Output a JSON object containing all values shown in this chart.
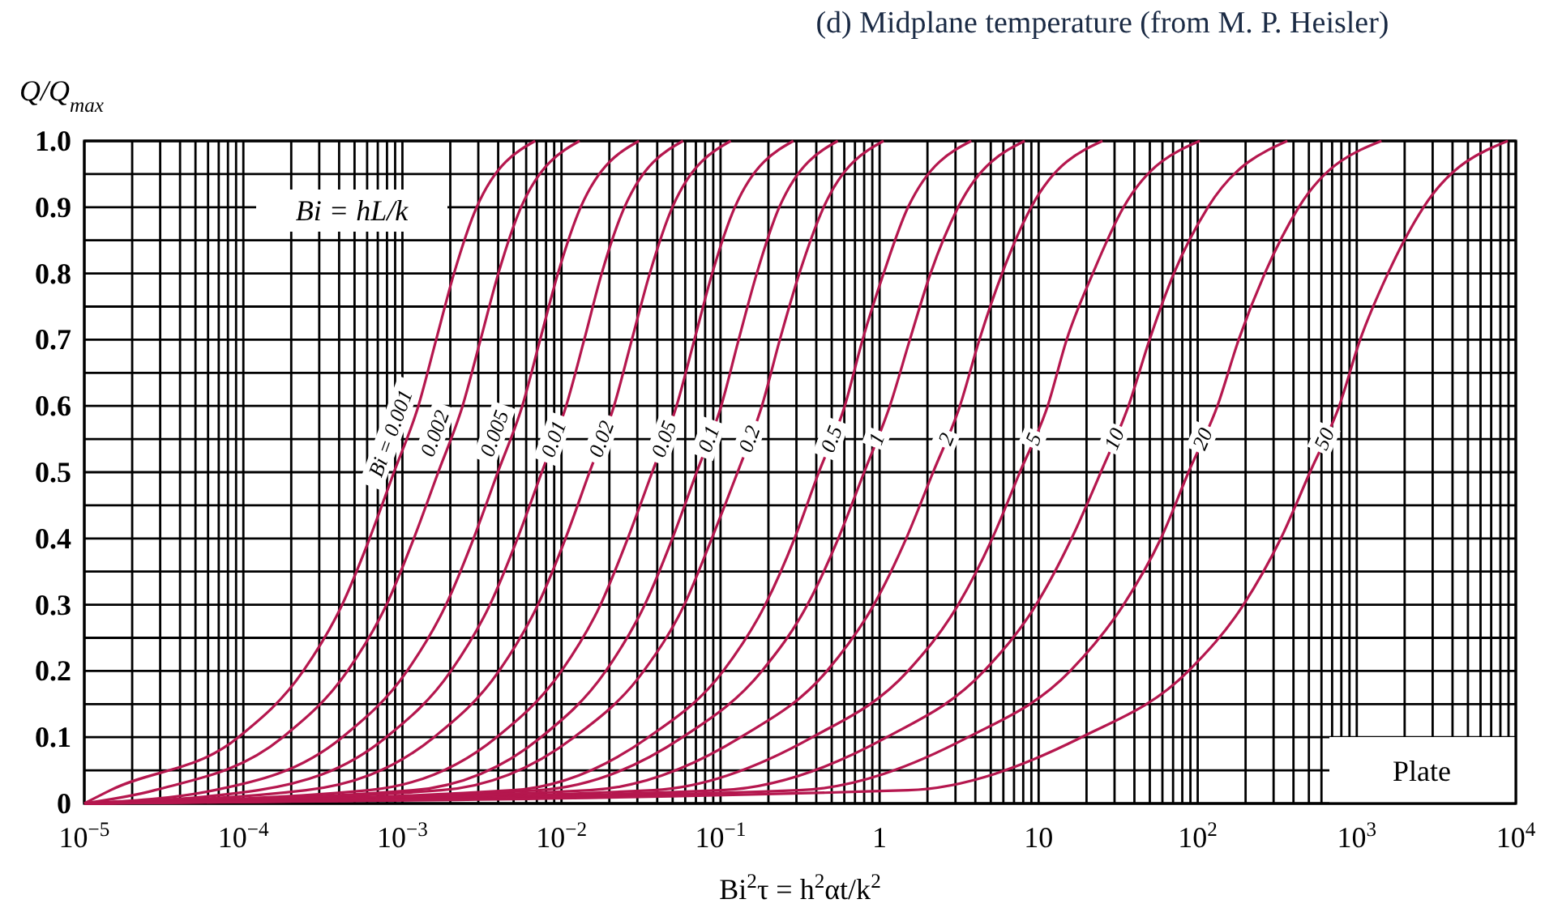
{
  "chart_data": {
    "type": "line",
    "title": "(d) Midplane temperature (from M. P. Heisler)",
    "xlabel": "Bi$^{2}$τ = h$^{2}$αt/k$^{2}$",
    "ylabel": "Q/Q$_{max}$",
    "log": "x",
    "grid": true,
    "legend": false,
    "marker": "none",
    "line_style": "solid",
    "xlim": [
      1e-05,
      10000
    ],
    "ylim": [
      0,
      1
    ],
    "xticks": [
      {
        "value": 1e-05,
        "label": "10$^{−5}$"
      },
      {
        "value": 2e-05,
        "label": null
      },
      {
        "value": 3e-05,
        "label": null
      },
      {
        "value": 4e-05,
        "label": null
      },
      {
        "value": 5e-05,
        "label": null
      },
      {
        "value": 6e-05,
        "label": null
      },
      {
        "value": 7e-05,
        "label": null
      },
      {
        "value": 8e-05,
        "label": null
      },
      {
        "value": 9e-05,
        "label": null
      },
      {
        "value": 0.0001,
        "label": "10$^{−4}$"
      },
      {
        "value": 0.0002,
        "label": null
      },
      {
        "value": 0.0003,
        "label": null
      },
      {
        "value": 0.0004,
        "label": null
      },
      {
        "value": 0.0005,
        "label": null
      },
      {
        "value": 0.0006,
        "label": null
      },
      {
        "value": 0.0007,
        "label": null
      },
      {
        "value": 0.0008,
        "label": null
      },
      {
        "value": 0.0009,
        "label": null
      },
      {
        "value": 0.001,
        "label": "10$^{−3}$"
      },
      {
        "value": 0.002,
        "label": null
      },
      {
        "value": 0.003,
        "label": null
      },
      {
        "value": 0.004,
        "label": null
      },
      {
        "value": 0.005,
        "label": null
      },
      {
        "value": 0.006,
        "label": null
      },
      {
        "value": 0.007,
        "label": null
      },
      {
        "value": 0.008,
        "label": null
      },
      {
        "value": 0.009,
        "label": null
      },
      {
        "value": 0.01,
        "label": "10$^{−2}$"
      },
      {
        "value": 0.02,
        "label": null
      },
      {
        "value": 0.03,
        "label": null
      },
      {
        "value": 0.04,
        "label": null
      },
      {
        "value": 0.05,
        "label": null
      },
      {
        "value": 0.06,
        "label": null
      },
      {
        "value": 0.07,
        "label": null
      },
      {
        "value": 0.08,
        "label": null
      },
      {
        "value": 0.09,
        "label": null
      },
      {
        "value": 0.1,
        "label": "10$^{−1}$"
      },
      {
        "value": 0.2,
        "label": null
      },
      {
        "value": 0.3,
        "label": null
      },
      {
        "value": 0.4,
        "label": null
      },
      {
        "value": 0.5,
        "label": null
      },
      {
        "value": 0.6,
        "label": null
      },
      {
        "value": 0.7,
        "label": null
      },
      {
        "value": 0.8,
        "label": null
      },
      {
        "value": 0.9,
        "label": null
      },
      1,
      {
        "value": 2,
        "label": null
      },
      {
        "value": 3,
        "label": null
      },
      {
        "value": 4,
        "label": null
      },
      {
        "value": 5,
        "label": null
      },
      {
        "value": 6,
        "label": null
      },
      {
        "value": 7,
        "label": null
      },
      {
        "value": 8,
        "label": null
      },
      {
        "value": 9,
        "label": null
      },
      10,
      {
        "value": 20,
        "label": null
      },
      {
        "value": 30,
        "label": null
      },
      {
        "value": 40,
        "label": null
      },
      {
        "value": 50,
        "label": null
      },
      {
        "value": 60,
        "label": null
      },
      {
        "value": 70,
        "label": null
      },
      {
        "value": 80,
        "label": null
      },
      {
        "value": 90,
        "label": null
      },
      {
        "value": 100,
        "label": "10$^{2}$"
      },
      {
        "value": 200,
        "label": null
      },
      {
        "value": 300,
        "label": null
      },
      {
        "value": 400,
        "label": null
      },
      {
        "value": 500,
        "label": null
      },
      {
        "value": 600,
        "label": null
      },
      {
        "value": 700,
        "label": null
      },
      {
        "value": 800,
        "label": null
      },
      {
        "value": 900,
        "label": null
      },
      {
        "value": 1000,
        "label": "10$^{3}$"
      },
      {
        "value": 2000,
        "label": null
      },
      {
        "value": 3000,
        "label": null
      },
      {
        "value": 4000,
        "label": null
      },
      {
        "value": 5000,
        "label": null
      },
      {
        "value": 6000,
        "label": null
      },
      {
        "value": 7000,
        "label": null
      },
      {
        "value": 8000,
        "label": null
      },
      {
        "value": 9000,
        "label": null
      },
      {
        "value": 10000,
        "label": "10$^{4}$"
      }
    ],
    "yticks": [
      0,
      {
        "value": 0.05,
        "label": null
      },
      0.1,
      {
        "value": 0.15,
        "label": null
      },
      0.2,
      {
        "value": 0.25,
        "label": null
      },
      0.3,
      {
        "value": 0.35,
        "label": null
      },
      0.4,
      {
        "value": 0.45,
        "label": null
      },
      0.5,
      {
        "value": 0.55,
        "label": null
      },
      0.6,
      {
        "value": 0.65,
        "label": null
      },
      0.7,
      {
        "value": 0.75,
        "label": null
      },
      0.8,
      {
        "value": 0.85,
        "label": null
      },
      0.9,
      {
        "value": 0.95,
        "label": null
      },
      {
        "value": 1,
        "label": "1.0"
      }
    ],
    "annotations": [
      "Bi = hL/k",
      "Plate"
    ],
    "series": [
      {
        "name": "Bi = 0.001",
        "color": "#b5174e",
        "x": [
          1e-05,
          1.46e-05,
          9.3e-05,
          0.000238,
          0.000418,
          0.000622,
          0.000885,
          0.00126,
          0.00163,
          0.00211,
          0.00293,
          0.00683
        ],
        "values": [
          0,
          0.02,
          0.1,
          0.2,
          0.3,
          0.4,
          0.5,
          0.6,
          0.7,
          0.8,
          0.9,
          1
        ]
      },
      {
        "name": "0.002",
        "color": "#b5174e",
        "x": [
          1e-05,
          2.77e-05,
          0.000177,
          0.000452,
          0.000794,
          0.00118,
          0.00168,
          0.00239,
          0.0031,
          0.00401,
          0.00557,
          0.013
        ],
        "values": [
          0,
          0.02,
          0.1,
          0.2,
          0.3,
          0.4,
          0.5,
          0.6,
          0.7,
          0.8,
          0.9,
          1
        ]
      },
      {
        "name": "0.005",
        "color": "#b5174e",
        "x": [
          1e-05,
          6.57e-05,
          0.000419,
          0.00107,
          0.00188,
          0.0028,
          0.00398,
          0.00567,
          0.00734,
          0.0095,
          0.0132,
          0.0307
        ],
        "values": [
          0,
          0.02,
          0.1,
          0.2,
          0.3,
          0.4,
          0.5,
          0.6,
          0.7,
          0.8,
          0.9,
          1
        ]
      },
      {
        "name": "0.01",
        "color": "#b5174e",
        "x": [
          1e-05,
          0.000124,
          0.000791,
          0.00202,
          0.00355,
          0.00529,
          0.00752,
          0.0107,
          0.0139,
          0.0179,
          0.0249,
          0.0581
        ],
        "values": [
          0,
          0.02,
          0.1,
          0.2,
          0.3,
          0.4,
          0.5,
          0.6,
          0.7,
          0.8,
          0.9,
          1
        ]
      },
      {
        "name": "0.02",
        "color": "#b5174e",
        "x": [
          1e-05,
          0.000248,
          0.00158,
          0.00405,
          0.00711,
          0.0106,
          0.015,
          0.0214,
          0.0277,
          0.0359,
          0.0498,
          0.116
        ],
        "values": [
          0,
          0.02,
          0.1,
          0.2,
          0.3,
          0.4,
          0.5,
          0.6,
          0.7,
          0.8,
          0.9,
          1
        ]
      },
      {
        "name": "0.05",
        "color": "#b5174e",
        "x": [
          1e-05,
          0.000613,
          0.00391,
          0.01,
          0.0176,
          0.0261,
          0.0372,
          0.0529,
          0.0685,
          0.0886,
          0.123,
          0.287
        ],
        "values": [
          0,
          0.02,
          0.1,
          0.2,
          0.3,
          0.4,
          0.5,
          0.6,
          0.7,
          0.8,
          0.9,
          1
        ]
      },
      {
        "name": "0.1",
        "color": "#b5174e",
        "x": [
          1e-05,
          0.00117,
          0.00744,
          0.019,
          0.0334,
          0.0498,
          0.0708,
          0.101,
          0.13,
          0.169,
          0.234,
          0.546
        ],
        "values": [
          0,
          0.02,
          0.1,
          0.2,
          0.3,
          0.4,
          0.5,
          0.6,
          0.7,
          0.8,
          0.9,
          1
        ]
      },
      {
        "name": "0.2",
        "color": "#b5174e",
        "x": [
          1e-05,
          0.00175,
          0.012,
          0.0329,
          0.0592,
          0.0881,
          0.128,
          0.182,
          0.236,
          0.313,
          0.445,
          1.06
        ],
        "values": [
          0,
          0.02,
          0.1,
          0.2,
          0.3,
          0.4,
          0.5,
          0.6,
          0.7,
          0.8,
          0.9,
          1
        ]
      },
      {
        "name": "0.5",
        "color": "#b5174e",
        "x": [
          1e-05,
          0.00491,
          0.0352,
          0.104,
          0.191,
          0.292,
          0.415,
          0.604,
          0.782,
          1.06,
          1.51,
          3.77
        ],
        "values": [
          0,
          0.02,
          0.1,
          0.2,
          0.3,
          0.4,
          0.5,
          0.6,
          0.7,
          0.8,
          0.9,
          1
        ]
      },
      {
        "name": "1",
        "color": "#b5174e",
        "x": [
          1e-05,
          0.00714,
          0.0577,
          0.182,
          0.352,
          0.55,
          0.8,
          1.16,
          1.55,
          2.09,
          3.12,
          8.17
        ],
        "values": [
          0,
          0.02,
          0.1,
          0.2,
          0.3,
          0.4,
          0.5,
          0.6,
          0.7,
          0.8,
          0.9,
          1
        ]
      },
      {
        "name": "2",
        "color": "#b5174e",
        "x": [
          1e-05,
          0.0151,
          0.134,
          0.467,
          0.92,
          1.47,
          2.17,
          3.2,
          4.24,
          5.89,
          8.98,
          25.2
        ],
        "values": [
          0,
          0.02,
          0.1,
          0.2,
          0.3,
          0.4,
          0.5,
          0.6,
          0.7,
          0.8,
          0.9,
          1
        ]
      },
      {
        "name": "5",
        "color": "#b5174e",
        "x": [
          1e-05,
          0.0378,
          0.378,
          1.51,
          3.12,
          5.11,
          7.62,
          11.4,
          15,
          21.9,
          34.2,
          103
        ],
        "values": [
          0,
          0.02,
          0.1,
          0.2,
          0.3,
          0.4,
          0.5,
          0.6,
          0.7,
          0.8,
          0.9,
          1
        ]
      },
      {
        "name": "10",
        "color": "#b5174e",
        "x": [
          1e-05,
          0.101,
          1.11,
          4.54,
          9.64,
          16.1,
          24.6,
          36.7,
          49.8,
          70.8,
          116,
          366
        ],
        "values": [
          0,
          0.02,
          0.1,
          0.2,
          0.3,
          0.4,
          0.5,
          0.6,
          0.7,
          0.8,
          0.9,
          1
        ]
      },
      {
        "name": "20",
        "color": "#b5174e",
        "x": [
          1e-05,
          0.313,
          3.6,
          15.8,
          34.2,
          58.7,
          87.5,
          133,
          181,
          264,
          432,
          1430
        ],
        "values": [
          0,
          0.02,
          0.1,
          0.2,
          0.3,
          0.4,
          0.5,
          0.6,
          0.7,
          0.8,
          0.9,
          1
        ]
      },
      {
        "name": "50",
        "color": "#b5174e",
        "x": [
          1e-05,
          1.51,
          18.6,
          87.5,
          194,
          333,
          508,
          776,
          1050,
          1570,
          2630,
          8910
        ],
        "values": [
          0,
          0.02,
          0.1,
          0.2,
          0.3,
          0.4,
          0.5,
          0.6,
          0.7,
          0.8,
          0.9,
          1
        ]
      }
    ]
  }
}
